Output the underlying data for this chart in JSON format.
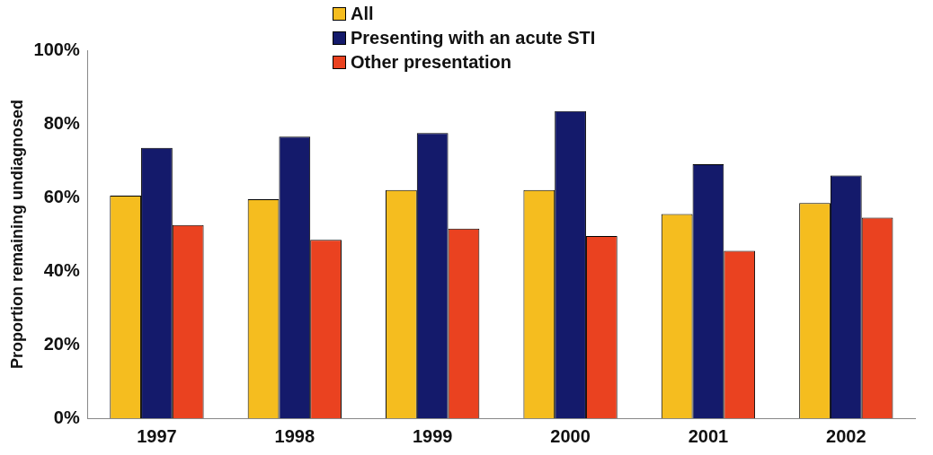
{
  "chart_data": {
    "type": "bar",
    "ylabel": "Proportion remaining undiagnosed",
    "categories": [
      "1997",
      "1998",
      "1999",
      "2000",
      "2001",
      "2002"
    ],
    "series": [
      {
        "name": "All",
        "color": "#f5bd1f",
        "values": [
          60.5,
          59.5,
          62,
          62,
          55.5,
          58.5
        ]
      },
      {
        "name": "Presenting with an acute STI",
        "color": "#141a6b",
        "values": [
          73.5,
          76.5,
          77.5,
          83.5,
          69,
          66
        ]
      },
      {
        "name": "Other presentation",
        "color": "#ea4220",
        "values": [
          52.5,
          48.5,
          51.5,
          49.5,
          45.5,
          54.5
        ]
      }
    ],
    "ylim": [
      0,
      100
    ],
    "yticks": [
      {
        "value": 0,
        "label": "0%"
      },
      {
        "value": 20,
        "label": "20%"
      },
      {
        "value": 40,
        "label": "40%"
      },
      {
        "value": 60,
        "label": "60%"
      },
      {
        "value": 80,
        "label": "80%"
      },
      {
        "value": 100,
        "label": "100%"
      }
    ],
    "grid": false,
    "legend": "top"
  }
}
